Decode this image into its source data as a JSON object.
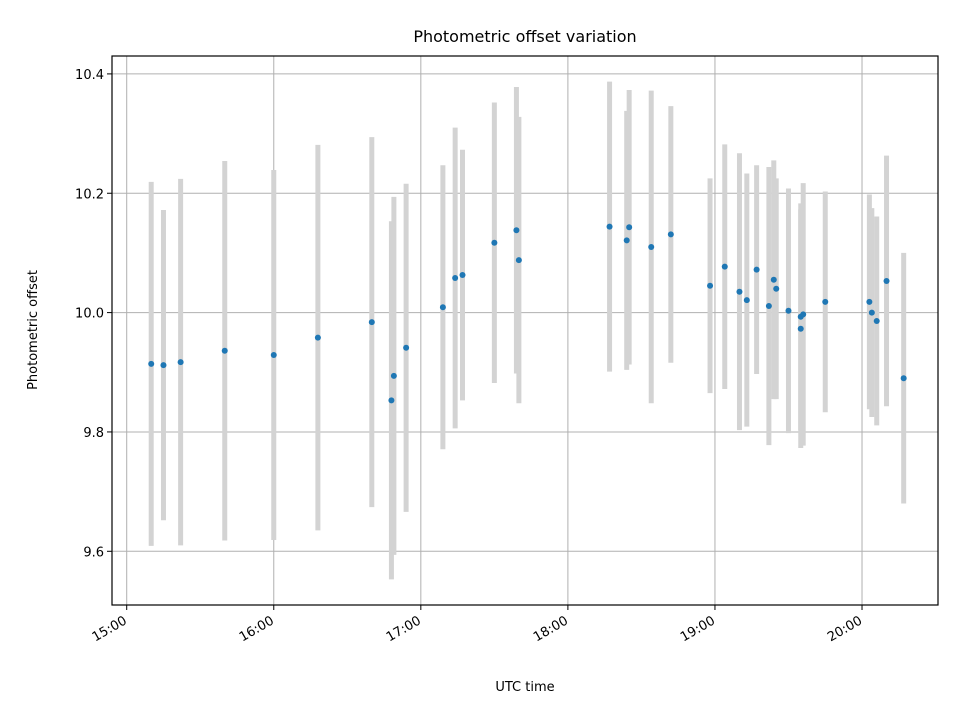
{
  "chart_data": {
    "type": "scatter",
    "title": "Photometric offset variation",
    "xlabel": "UTC time",
    "ylabel": "Photometric offset",
    "xlim": [
      "14:54",
      "20:31"
    ],
    "ylim": [
      9.51,
      10.43
    ],
    "xticks": [
      "15:00",
      "16:00",
      "17:00",
      "18:00",
      "19:00",
      "20:00"
    ],
    "yticks": [
      "9.6",
      "9.8",
      "10.0",
      "10.2",
      "10.4"
    ],
    "grid": true,
    "colors": {
      "point": "#1f77b4",
      "errorbar": "#d3d3d3",
      "grid": "#b0b0b0"
    },
    "series": [
      {
        "points": [
          {
            "x": "15:10",
            "y": 9.914,
            "err": 0.305
          },
          {
            "x": "15:15",
            "y": 9.912,
            "err": 0.26
          },
          {
            "x": "15:22",
            "y": 9.917,
            "err": 0.307
          },
          {
            "x": "15:40",
            "y": 9.936,
            "err": 0.318
          },
          {
            "x": "16:00",
            "y": 9.929,
            "err": 0.31
          },
          {
            "x": "16:18",
            "y": 9.958,
            "err": 0.323
          },
          {
            "x": "16:40",
            "y": 9.984,
            "err": 0.31
          },
          {
            "x": "16:48",
            "y": 9.853,
            "err": 0.3
          },
          {
            "x": "16:49",
            "y": 9.894,
            "err": 0.3
          },
          {
            "x": "16:54",
            "y": 9.941,
            "err": 0.275
          },
          {
            "x": "17:09",
            "y": 10.009,
            "err": 0.238
          },
          {
            "x": "17:14",
            "y": 10.058,
            "err": 0.252
          },
          {
            "x": "17:17",
            "y": 10.063,
            "err": 0.21
          },
          {
            "x": "17:30",
            "y": 10.117,
            "err": 0.235
          },
          {
            "x": "17:39",
            "y": 10.138,
            "err": 0.24
          },
          {
            "x": "17:40",
            "y": 10.088,
            "err": 0.24
          },
          {
            "x": "18:17",
            "y": 10.144,
            "err": 0.243
          },
          {
            "x": "18:24",
            "y": 10.121,
            "err": 0.217
          },
          {
            "x": "18:25",
            "y": 10.143,
            "err": 0.23
          },
          {
            "x": "18:34",
            "y": 10.11,
            "err": 0.262
          },
          {
            "x": "18:42",
            "y": 10.131,
            "err": 0.215
          },
          {
            "x": "18:58",
            "y": 10.045,
            "err": 0.18
          },
          {
            "x": "19:04",
            "y": 10.077,
            "err": 0.205
          },
          {
            "x": "19:10",
            "y": 10.035,
            "err": 0.232
          },
          {
            "x": "19:13",
            "y": 10.021,
            "err": 0.212
          },
          {
            "x": "19:17",
            "y": 10.072,
            "err": 0.175
          },
          {
            "x": "19:22",
            "y": 10.011,
            "err": 0.233
          },
          {
            "x": "19:24",
            "y": 10.055,
            "err": 0.2
          },
          {
            "x": "19:25",
            "y": 10.04,
            "err": 0.185
          },
          {
            "x": "19:30",
            "y": 10.003,
            "err": 0.205
          },
          {
            "x": "19:35",
            "y": 9.973,
            "err": 0.2
          },
          {
            "x": "19:35",
            "y": 9.993,
            "err": 0.19
          },
          {
            "x": "19:36",
            "y": 9.997,
            "err": 0.22
          },
          {
            "x": "19:45",
            "y": 10.018,
            "err": 0.185
          },
          {
            "x": "20:03",
            "y": 10.018,
            "err": 0.18
          },
          {
            "x": "20:04",
            "y": 10.0,
            "err": 0.175
          },
          {
            "x": "20:06",
            "y": 9.986,
            "err": 0.175
          },
          {
            "x": "20:10",
            "y": 10.053,
            "err": 0.21
          },
          {
            "x": "20:17",
            "y": 9.89,
            "err": 0.21
          }
        ]
      }
    ]
  }
}
